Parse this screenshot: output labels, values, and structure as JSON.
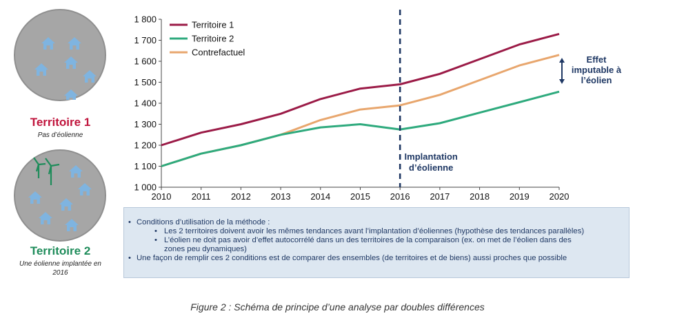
{
  "territory1": {
    "title": "Territoire 1",
    "subtitle": "Pas d’éolienne",
    "color": "#c0143c"
  },
  "territory2": {
    "title": "Territoire 2",
    "subtitle_line1": "Une éolienne implantée en",
    "subtitle_line2": "2016",
    "color": "#1e8c5a"
  },
  "icons": {
    "house": "house-icon",
    "turbine": "wind-turbine-icon"
  },
  "chart_data": {
    "type": "line",
    "x": [
      2010,
      2011,
      2012,
      2013,
      2014,
      2015,
      2016,
      2017,
      2018,
      2019,
      2020
    ],
    "x_tick_labels": [
      "2010",
      "2011",
      "2012",
      "2013",
      "2014",
      "2015",
      "2016",
      "2017",
      "2018",
      "2019",
      "2020"
    ],
    "ylim": [
      1000,
      1800
    ],
    "y_ticks": [
      1000,
      1100,
      1200,
      1300,
      1400,
      1500,
      1600,
      1700,
      1800
    ],
    "y_tick_labels": [
      "1 000",
      "1 100",
      "1 200",
      "1 300",
      "1 400",
      "1 500",
      "1 600",
      "1 700",
      "1 800"
    ],
    "series": [
      {
        "name": "Territoire 1",
        "color": "#9b1b47",
        "values": [
          1200,
          1260,
          1300,
          1350,
          1420,
          1470,
          1490,
          1540,
          1610,
          1680,
          1730
        ]
      },
      {
        "name": "Territoire 2",
        "color": "#2eaa7d",
        "values": [
          1100,
          1160,
          1200,
          1250,
          1285,
          1300,
          1275,
          1305,
          1355,
          1405,
          1455
        ]
      },
      {
        "name": "Contrefactuel",
        "color": "#e8a66d",
        "values": [
          1100,
          1160,
          1200,
          1250,
          1320,
          1370,
          1390,
          1440,
          1510,
          1580,
          1630
        ]
      }
    ],
    "legend_position": "top-left",
    "grid": false,
    "vertical_marker": {
      "x": 2016,
      "style": "dashed",
      "color": "#1f3864"
    },
    "annotations": {
      "implantation": [
        "Implantation",
        "d’éolienne"
      ],
      "effect": [
        "Effet",
        "imputable à",
        "l’éolien"
      ],
      "color": "#1f3864"
    }
  },
  "info_box": {
    "bullet1": "Conditions d’utilisation de la méthode :",
    "sub1": "Les 2 territoires doivent avoir les mêmes tendances avant l’implantation d’éoliennes (hypothèse des tendances parallèles)",
    "sub2_line1": "L’éolien ne doit pas avoir d’effet autocorrélé dans un des territoires de la comparaison (ex. on met de l’éolien dans des",
    "sub2_line2": "zones peu dynamiques)",
    "bullet2": "Une façon de remplir ces 2 conditions est de comparer des ensembles (de territoires et de biens) aussi proches que possible"
  },
  "caption": "Figure 2 : Schéma de principe d’une analyse par doubles différences"
}
